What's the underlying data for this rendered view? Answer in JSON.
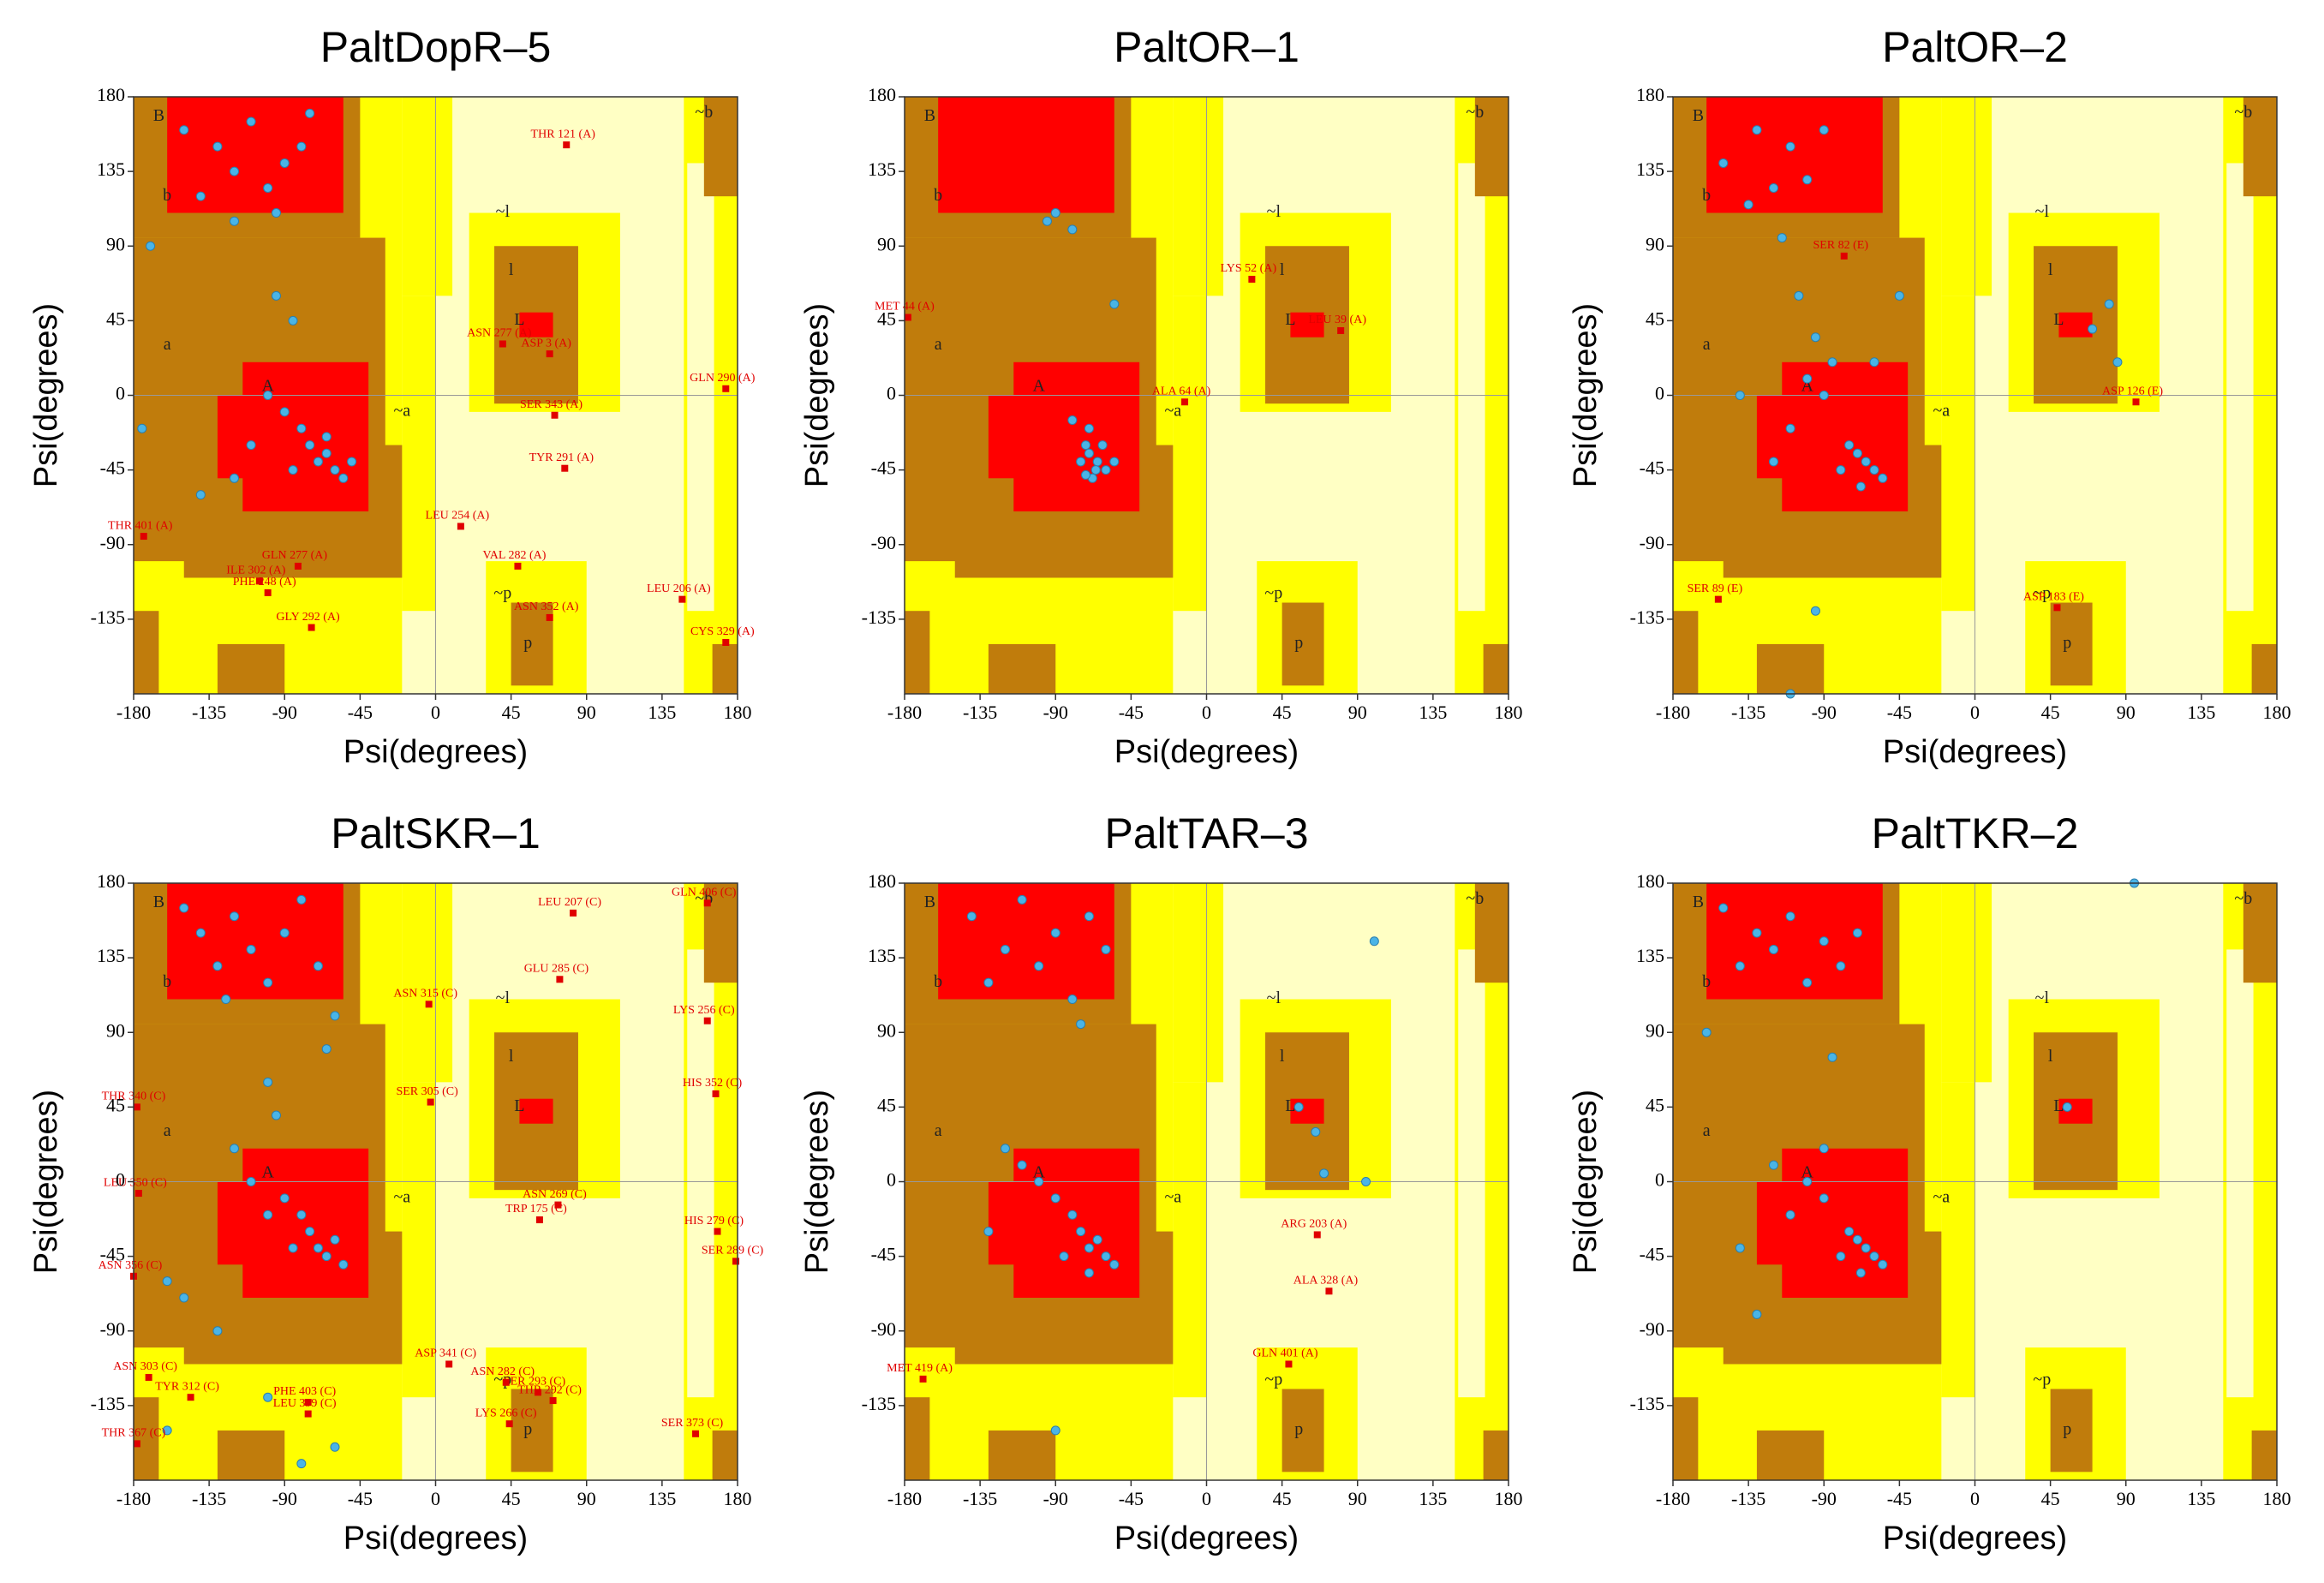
{
  "chart_data": [
    {
      "type": "scatter",
      "title": "PaltDopR–5",
      "xlabel": "Psi(degrees)",
      "ylabel": "Psi(degrees)",
      "xlim": [
        -180,
        180
      ],
      "ylim": [
        -180,
        180
      ],
      "xticks": [
        -180,
        -135,
        -90,
        -45,
        0,
        45,
        90,
        135,
        180
      ],
      "yticks": [
        -135,
        -90,
        -45,
        0,
        45,
        90,
        135,
        180
      ],
      "zero_lines": true,
      "region_labels": [
        "A",
        "B",
        "L",
        "a",
        "b",
        "l",
        "p",
        "~a",
        "~b",
        "~l",
        "~p"
      ],
      "points": {
        "color": "#4ab4e6",
        "x": [
          -150,
          -130,
          -120,
          -110,
          -100,
          -90,
          -80,
          -140,
          -95,
          -120,
          -75,
          -70,
          -65,
          -60,
          -75,
          -55,
          -80,
          -90,
          -100,
          -65,
          -50,
          -85,
          -110,
          -120,
          -140,
          -95,
          -85,
          -170,
          -175
        ],
        "y": [
          160,
          150,
          135,
          165,
          125,
          140,
          150,
          120,
          110,
          105,
          170,
          -40,
          -35,
          -45,
          -30,
          -50,
          -20,
          -10,
          0,
          -25,
          -40,
          -45,
          -30,
          -50,
          -60,
          60,
          45,
          90,
          -20
        ]
      },
      "outliers": {
        "color": "#e00000",
        "x": [
          78,
          40,
          68,
          173,
          71,
          77,
          -174,
          15,
          49,
          -82,
          -105,
          -100,
          147,
          68,
          -74,
          173
        ],
        "y": [
          151,
          31,
          25,
          4,
          -12,
          -44,
          -85,
          -79,
          -103,
          -103,
          -112,
          -119,
          -123,
          -134,
          -140,
          -149
        ],
        "labels": [
          "THR 121 (A)",
          "ASN 277 (A)",
          "ASP 3 (A)",
          "GLN 290 (A)",
          "SER 343 (A)",
          "TYR 291 (A)",
          "THR 401 (A)",
          "LEU 254 (A)",
          "VAL 282 (A)",
          "GLN 277 (A)",
          "ILE 302 (A)",
          "PHE 248 (A)",
          "LEU 206 (A)",
          "ASN 352 (A)",
          "GLY 292 (A)",
          "CYS 329 (A)"
        ]
      }
    },
    {
      "type": "scatter",
      "title": "PaltOR–1",
      "xlabel": "Psi(degrees)",
      "ylabel": "Psi(degrees)",
      "xlim": [
        -180,
        180
      ],
      "ylim": [
        -180,
        180
      ],
      "xticks": [
        -180,
        -135,
        -90,
        -45,
        0,
        45,
        90,
        135,
        180
      ],
      "yticks": [
        -135,
        -90,
        -45,
        0,
        45,
        90,
        135,
        180
      ],
      "zero_lines": true,
      "region_labels": [
        "A",
        "B",
        "L",
        "a",
        "b",
        "l",
        "p",
        "~a",
        "~b",
        "~l",
        "~p"
      ],
      "points": {
        "color": "#4ab4e6",
        "x": [
          -90,
          -80,
          -95,
          -70,
          -65,
          -60,
          -72,
          -68,
          -75,
          -62,
          -70,
          -80,
          -55,
          -66,
          -72,
          -55
        ],
        "y": [
          110,
          100,
          105,
          -35,
          -40,
          -45,
          -30,
          -50,
          -40,
          -30,
          -20,
          -15,
          -40,
          -45,
          -48,
          55
        ]
      },
      "outliers": {
        "color": "#e00000",
        "x": [
          27,
          -178,
          80,
          -13
        ],
        "y": [
          70,
          47,
          39,
          -4
        ],
        "labels": [
          "LYS 52 (A)",
          "MET 44 (A)",
          "LEU 39 (A)",
          "ALA 64 (A)"
        ]
      }
    },
    {
      "type": "scatter",
      "title": "PaltOR–2",
      "xlabel": "Psi(degrees)",
      "ylabel": "Psi(degrees)",
      "xlim": [
        -180,
        180
      ],
      "ylim": [
        -180,
        180
      ],
      "xticks": [
        -180,
        -135,
        -90,
        -45,
        0,
        45,
        90,
        135,
        180
      ],
      "yticks": [
        -135,
        -90,
        -45,
        0,
        45,
        90,
        135,
        180
      ],
      "zero_lines": true,
      "region_labels": [
        "A",
        "B",
        "L",
        "a",
        "b",
        "l",
        "p",
        "~a",
        "~b",
        "~l",
        "~p"
      ],
      "points": {
        "color": "#4ab4e6",
        "x": [
          -150,
          -130,
          -120,
          -110,
          -100,
          -135,
          -90,
          -115,
          -65,
          -60,
          -70,
          -55,
          -75,
          -80,
          -68,
          -100,
          -110,
          -120,
          -90,
          -85,
          -95,
          -105,
          -140,
          -60,
          -45,
          70,
          80,
          85,
          -95,
          -110
        ],
        "y": [
          140,
          160,
          125,
          150,
          130,
          115,
          160,
          95,
          -40,
          -45,
          -35,
          -50,
          -30,
          -45,
          -55,
          10,
          -20,
          -40,
          0,
          20,
          35,
          60,
          0,
          20,
          60,
          40,
          55,
          20,
          -130,
          -180
        ]
      },
      "outliers": {
        "color": "#e00000",
        "x": [
          -78,
          96,
          -153,
          49
        ],
        "y": [
          84,
          -4,
          -123,
          -128
        ],
        "labels": [
          "SER 82 (E)",
          "ASP 126 (E)",
          "SER 89 (E)",
          "ASP 183 (E)"
        ]
      }
    },
    {
      "type": "scatter",
      "title": "PaltSKR–1",
      "xlabel": "Psi(degrees)",
      "ylabel": "Psi(degrees)",
      "xlim": [
        -180,
        180
      ],
      "ylim": [
        -180,
        180
      ],
      "xticks": [
        -180,
        -135,
        -90,
        -45,
        0,
        45,
        90,
        135,
        180
      ],
      "yticks": [
        -135,
        -90,
        -45,
        0,
        45,
        90,
        135,
        180
      ],
      "zero_lines": true,
      "region_labels": [
        "A",
        "B",
        "L",
        "a",
        "b",
        "l",
        "p",
        "~a",
        "~b",
        "~l",
        "~p"
      ],
      "points": {
        "color": "#4ab4e6",
        "x": [
          -150,
          -140,
          -130,
          -120,
          -110,
          -100,
          -90,
          -80,
          -70,
          -125,
          -60,
          -65,
          -70,
          -65,
          -60,
          -75,
          -55,
          -80,
          -90,
          -85,
          -100,
          -110,
          -120,
          -95,
          -100,
          -160,
          -150,
          -130,
          -100,
          -60,
          -80,
          -160
        ],
        "y": [
          165,
          150,
          130,
          160,
          140,
          120,
          150,
          170,
          130,
          110,
          100,
          80,
          -40,
          -45,
          -35,
          -30,
          -50,
          -20,
          -10,
          -40,
          -20,
          0,
          20,
          40,
          60,
          -60,
          -70,
          -90,
          -130,
          -160,
          -170,
          -150
        ]
      },
      "outliers": {
        "color": "#e00000",
        "x": [
          82,
          162,
          74,
          -4,
          162,
          -178,
          -3,
          167,
          -177,
          73,
          62,
          168,
          179,
          -180,
          8,
          -171,
          42,
          -146,
          61,
          70,
          -76,
          -76,
          44,
          155,
          -178
        ],
        "y": [
          162,
          168,
          122,
          107,
          97,
          45,
          48,
          53,
          -7,
          -14,
          -23,
          -30,
          -48,
          -57,
          -110,
          -118,
          -121,
          -130,
          -127,
          -132,
          -133,
          -140,
          -146,
          -152,
          -158
        ],
        "labels": [
          "LEU 207 (C)",
          "GLN 406 (C)",
          "GLU 285 (C)",
          "ASN 315 (C)",
          "LYS 256 (C)",
          "THR 340 (C)",
          "SER 305 (C)",
          "HIS 352 (C)",
          "LEU 350 (C)",
          "ASN 269 (C)",
          "TRP 175 (C)",
          "HIS 279 (C)",
          "SER 289 (C)",
          "ASN 356 (C)",
          "ASP 341 (C)",
          "ASN 303 (C)",
          "ASN 282 (C)",
          "TYR 312 (C)",
          "SER 293 (C)",
          "THR 292 (C)",
          "PHE 403 (C)",
          "LEU 399 (C)",
          "LYS 266 (C)",
          "SER 373 (C)",
          "THR 367 (C)"
        ]
      }
    },
    {
      "type": "scatter",
      "title": "PaltTAR–3",
      "xlabel": "Psi(degrees)",
      "ylabel": "Psi(degrees)",
      "xlim": [
        -180,
        180
      ],
      "ylim": [
        -180,
        180
      ],
      "xticks": [
        -180,
        -135,
        -90,
        -45,
        0,
        45,
        90,
        135,
        180
      ],
      "yticks": [
        -135,
        -90,
        -45,
        0,
        45,
        90,
        135,
        180
      ],
      "zero_lines": true,
      "region_labels": [
        "A",
        "B",
        "L",
        "a",
        "b",
        "l",
        "p",
        "~a",
        "~b",
        "~l",
        "~p"
      ],
      "points": {
        "color": "#4ab4e6",
        "x": [
          -140,
          -120,
          -110,
          -100,
          -90,
          -80,
          -70,
          -130,
          -60,
          -75,
          -70,
          -65,
          -60,
          -75,
          -55,
          -80,
          -90,
          -100,
          -110,
          -120,
          -85,
          -70,
          -130,
          55,
          65,
          70,
          95,
          100,
          -90
        ],
        "y": [
          160,
          140,
          170,
          130,
          150,
          110,
          160,
          120,
          140,
          95,
          -40,
          -35,
          -45,
          -30,
          -50,
          -20,
          -10,
          0,
          10,
          20,
          -45,
          -55,
          -30,
          45,
          30,
          5,
          0,
          145,
          -150
        ]
      },
      "outliers": {
        "color": "#e00000",
        "x": [
          66,
          73,
          49,
          -169
        ],
        "y": [
          -32,
          -66,
          -110,
          -119
        ],
        "labels": [
          "ARG 203 (A)",
          "ALA 328 (A)",
          "GLN 401 (A)",
          "MET 419 (A)"
        ]
      }
    },
    {
      "type": "scatter",
      "title": "PaltTKR–2",
      "xlabel": "Psi(degrees)",
      "ylabel": "Psi(degrees)",
      "xlim": [
        -180,
        180
      ],
      "ylim": [
        -180,
        180
      ],
      "xticks": [
        -180,
        -135,
        -90,
        -45,
        0,
        45,
        90,
        135,
        180
      ],
      "yticks": [
        -135,
        -90,
        -45,
        0,
        45,
        90,
        135,
        180
      ],
      "zero_lines": true,
      "region_labels": [
        "A",
        "B",
        "L",
        "a",
        "b",
        "l",
        "p",
        "~a",
        "~b",
        "~l",
        "~p"
      ],
      "points": {
        "color": "#4ab4e6",
        "x": [
          -150,
          -130,
          -120,
          -110,
          -100,
          -90,
          -80,
          -70,
          -140,
          -160,
          -85,
          -65,
          -60,
          -70,
          -55,
          -75,
          -80,
          -68,
          -90,
          -100,
          -110,
          -120,
          -90,
          -130,
          -140,
          55,
          95
        ],
        "y": [
          165,
          150,
          140,
          160,
          120,
          145,
          130,
          150,
          130,
          90,
          75,
          -40,
          -45,
          -35,
          -50,
          -30,
          -45,
          -55,
          -10,
          0,
          -20,
          10,
          20,
          -80,
          -40,
          45,
          180
        ]
      }
    }
  ]
}
